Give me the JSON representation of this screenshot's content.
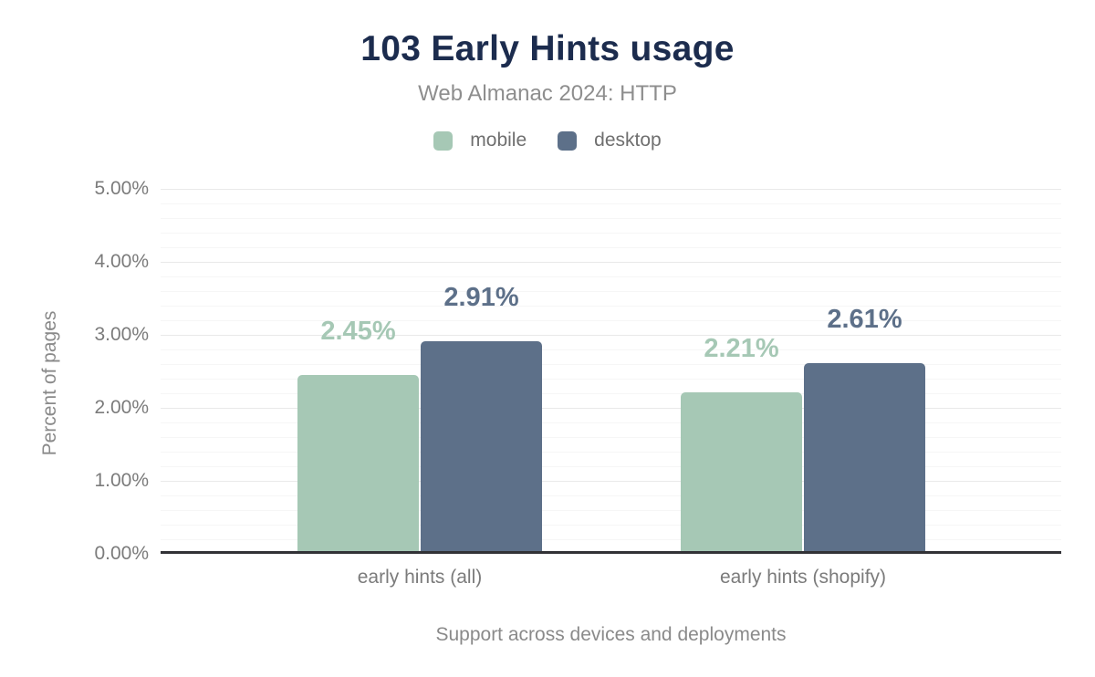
{
  "header": {
    "title": "103 Early Hints usage",
    "subtitle": "Web Almanac 2024: HTTP"
  },
  "legend": {
    "items": [
      {
        "label": "mobile",
        "color": "#a6c8b5"
      },
      {
        "label": "desktop",
        "color": "#5d7089"
      }
    ]
  },
  "y_axis": {
    "title": "Percent of pages",
    "tick_labels": [
      "0.00%",
      "1.00%",
      "2.00%",
      "3.00%",
      "4.00%",
      "5.00%"
    ],
    "max": 5,
    "minor_step": 0.2
  },
  "x_axis": {
    "title": "Support across devices and deployments",
    "categories": [
      "early hints (all)",
      "early hints (shopify)"
    ]
  },
  "colors": {
    "title_text": "#1c2c4e",
    "mobile": "#a6c8b5",
    "desktop": "#5d7089",
    "axis_line": "#323236",
    "gridline_major": "#e9e9e9",
    "gridline_minor": "#f6f6f6"
  },
  "chart_data": {
    "type": "bar",
    "title": "103 Early Hints usage",
    "subtitle": "Web Almanac 2024: HTTP",
    "categories": [
      "early hints (all)",
      "early hints (shopify)"
    ],
    "series": [
      {
        "name": "mobile",
        "color": "#a6c8b5",
        "values": [
          2.45,
          2.21
        ],
        "labels": [
          "2.45%",
          "2.21%"
        ]
      },
      {
        "name": "desktop",
        "color": "#5d7089",
        "values": [
          2.91,
          2.61
        ],
        "labels": [
          "2.91%",
          "2.61%"
        ]
      }
    ],
    "xlabel": "Support across devices and deployments",
    "ylabel": "Percent of pages",
    "ylim": [
      0,
      5
    ],
    "y_tick_format": "0.00%",
    "grid": true,
    "legend_position": "top"
  }
}
